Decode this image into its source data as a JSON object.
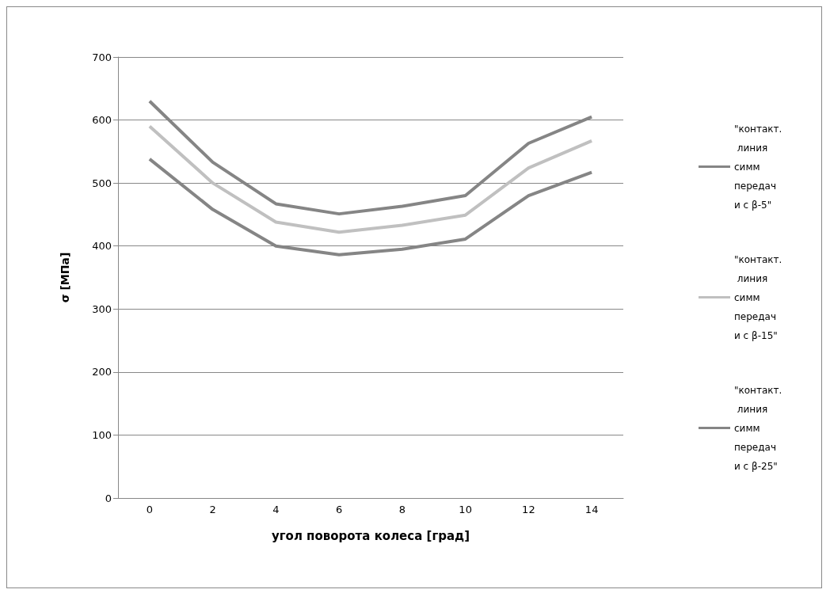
{
  "chart_data": {
    "type": "line",
    "xlabel": "угол поворота колеса [град]",
    "ylabel": "σ [МПа]",
    "categories": [
      "0",
      "2",
      "4",
      "6",
      "8",
      "10",
      "12",
      "14"
    ],
    "series": [
      {
        "name": "\"контакт. линия симм передачи с β-5\"",
        "color": "#858585",
        "values": [
          630,
          533,
          467,
          451,
          463,
          480,
          563,
          605
        ]
      },
      {
        "name": "\"контакт. линия симм передачи с β-15\"",
        "color": "#c0c0c0",
        "values": [
          590,
          500,
          438,
          422,
          433,
          449,
          524,
          567
        ]
      },
      {
        "name": "\"контакт. линия симм передачи с β-25\"",
        "color": "#858585",
        "values": [
          538,
          458,
          400,
          386,
          395,
          411,
          480,
          517
        ]
      }
    ],
    "ylim": [
      0,
      700
    ],
    "yticks": [
      0,
      100,
      200,
      300,
      400,
      500,
      600,
      700
    ],
    "grid": "y",
    "legend": "right",
    "marker": "none",
    "line_style": "solid"
  }
}
